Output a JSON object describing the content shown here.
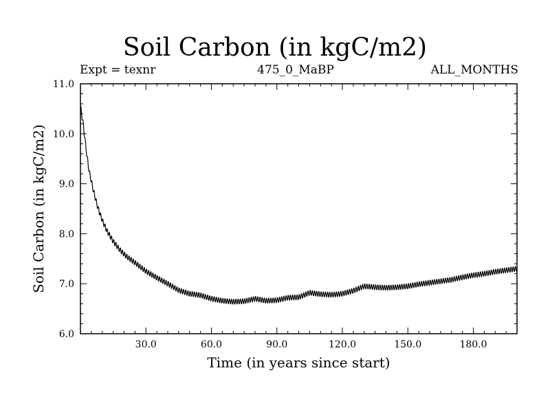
{
  "chart_data": {
    "type": "line",
    "title": "Soil Carbon (in kgC/m2)",
    "subtitle_left": "Expt = texnr",
    "subtitle_center": "475_0_MaBP",
    "subtitle_right": "ALL_MONTHS",
    "xlabel": "Time (in years since start)",
    "ylabel": "Soil Carbon (in kgC/m2)",
    "xlim": [
      0,
      200
    ],
    "ylim": [
      6.0,
      11.0
    ],
    "xticks": [
      30,
      60,
      90,
      120,
      150,
      180
    ],
    "xtick_labels": [
      "30.0",
      "60.0",
      "90.0",
      "120.0",
      "150.0",
      "180.0"
    ],
    "yticks": [
      6.0,
      7.0,
      8.0,
      9.0,
      10.0,
      11.0
    ],
    "ytick_labels": [
      "6.0",
      "7.0",
      "8.0",
      "9.0",
      "10.0",
      "11.0"
    ],
    "series": [
      {
        "name": "Soil Carbon",
        "seasonal_amplitude": 0.05,
        "x": [
          0,
          1,
          2,
          3,
          4,
          6,
          8,
          10,
          12,
          15,
          18,
          21,
          25,
          30,
          35,
          40,
          45,
          50,
          55,
          60,
          65,
          70,
          75,
          80,
          85,
          90,
          95,
          100,
          105,
          110,
          115,
          120,
          125,
          130,
          135,
          140,
          145,
          150,
          155,
          160,
          165,
          170,
          175,
          180,
          185,
          190,
          195,
          200
        ],
        "y": [
          10.55,
          10.28,
          9.92,
          9.55,
          9.25,
          8.85,
          8.52,
          8.27,
          8.07,
          7.85,
          7.68,
          7.55,
          7.42,
          7.25,
          7.12,
          7.0,
          6.87,
          6.8,
          6.77,
          6.7,
          6.66,
          6.64,
          6.65,
          6.7,
          6.66,
          6.67,
          6.72,
          6.73,
          6.82,
          6.79,
          6.78,
          6.8,
          6.86,
          6.95,
          6.93,
          6.92,
          6.93,
          6.95,
          6.99,
          7.02,
          7.05,
          7.08,
          7.13,
          7.17,
          7.2,
          7.24,
          7.27,
          7.3
        ]
      }
    ]
  }
}
